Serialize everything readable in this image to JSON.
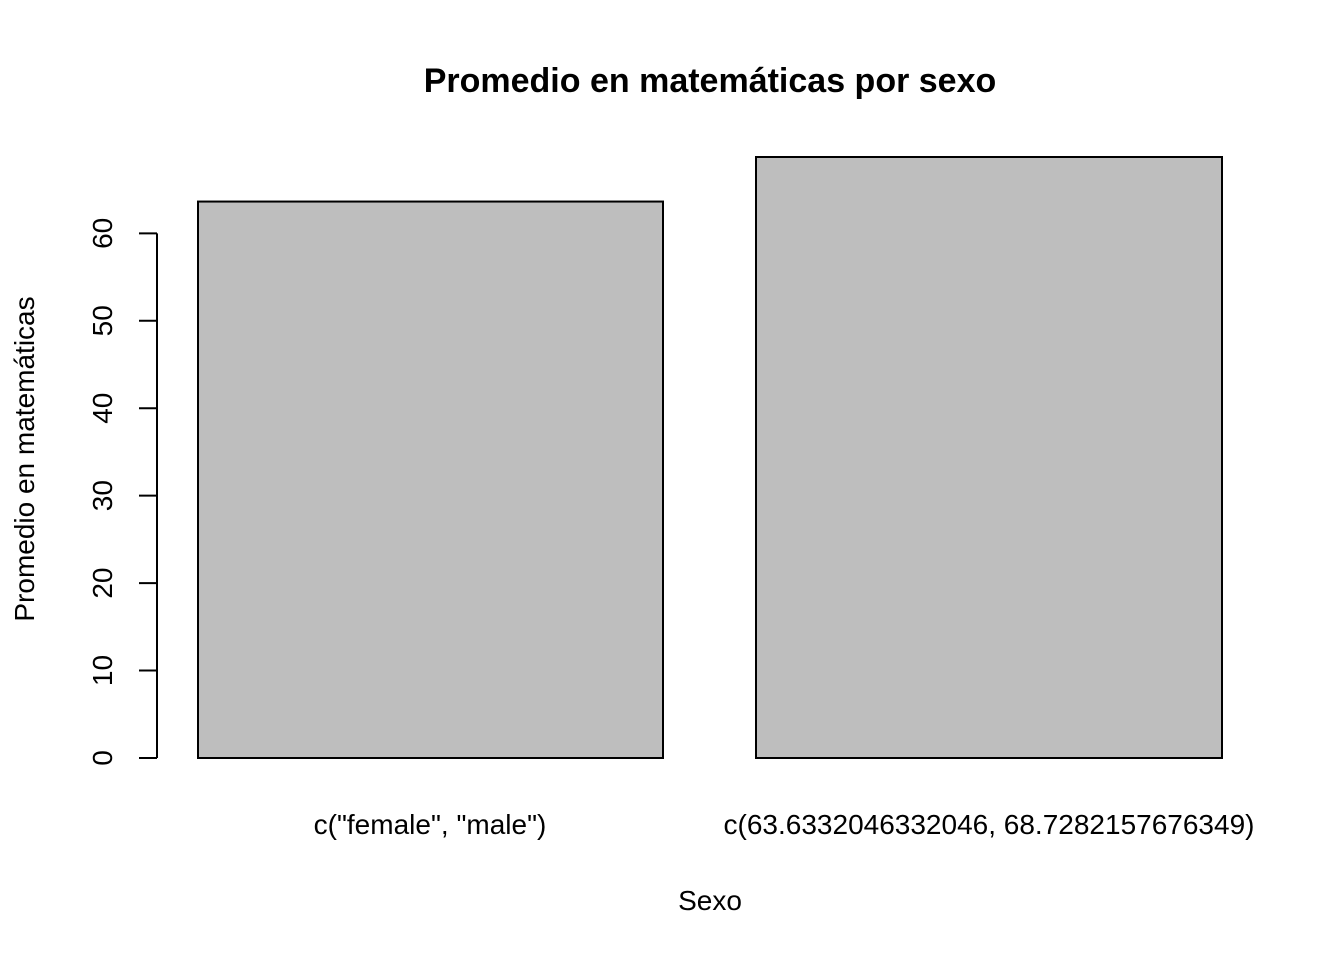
{
  "chart_data": {
    "type": "bar",
    "title": "Promedio en matemáticas por sexo",
    "xlabel": "Sexo",
    "ylabel": "Promedio en matemáticas",
    "categories": [
      "c(\"female\", \"male\")",
      "c(63.6332046332046, 68.7282157676349)"
    ],
    "values": [
      63.6332046332046,
      68.7282157676349
    ],
    "yticks": [
      "0",
      "10",
      "20",
      "30",
      "40",
      "50",
      "60"
    ],
    "ylim": [
      0,
      68.7282157676349
    ],
    "grid": false,
    "legend": "none",
    "bar_color": "#bebebe",
    "border_color": "#000000"
  }
}
